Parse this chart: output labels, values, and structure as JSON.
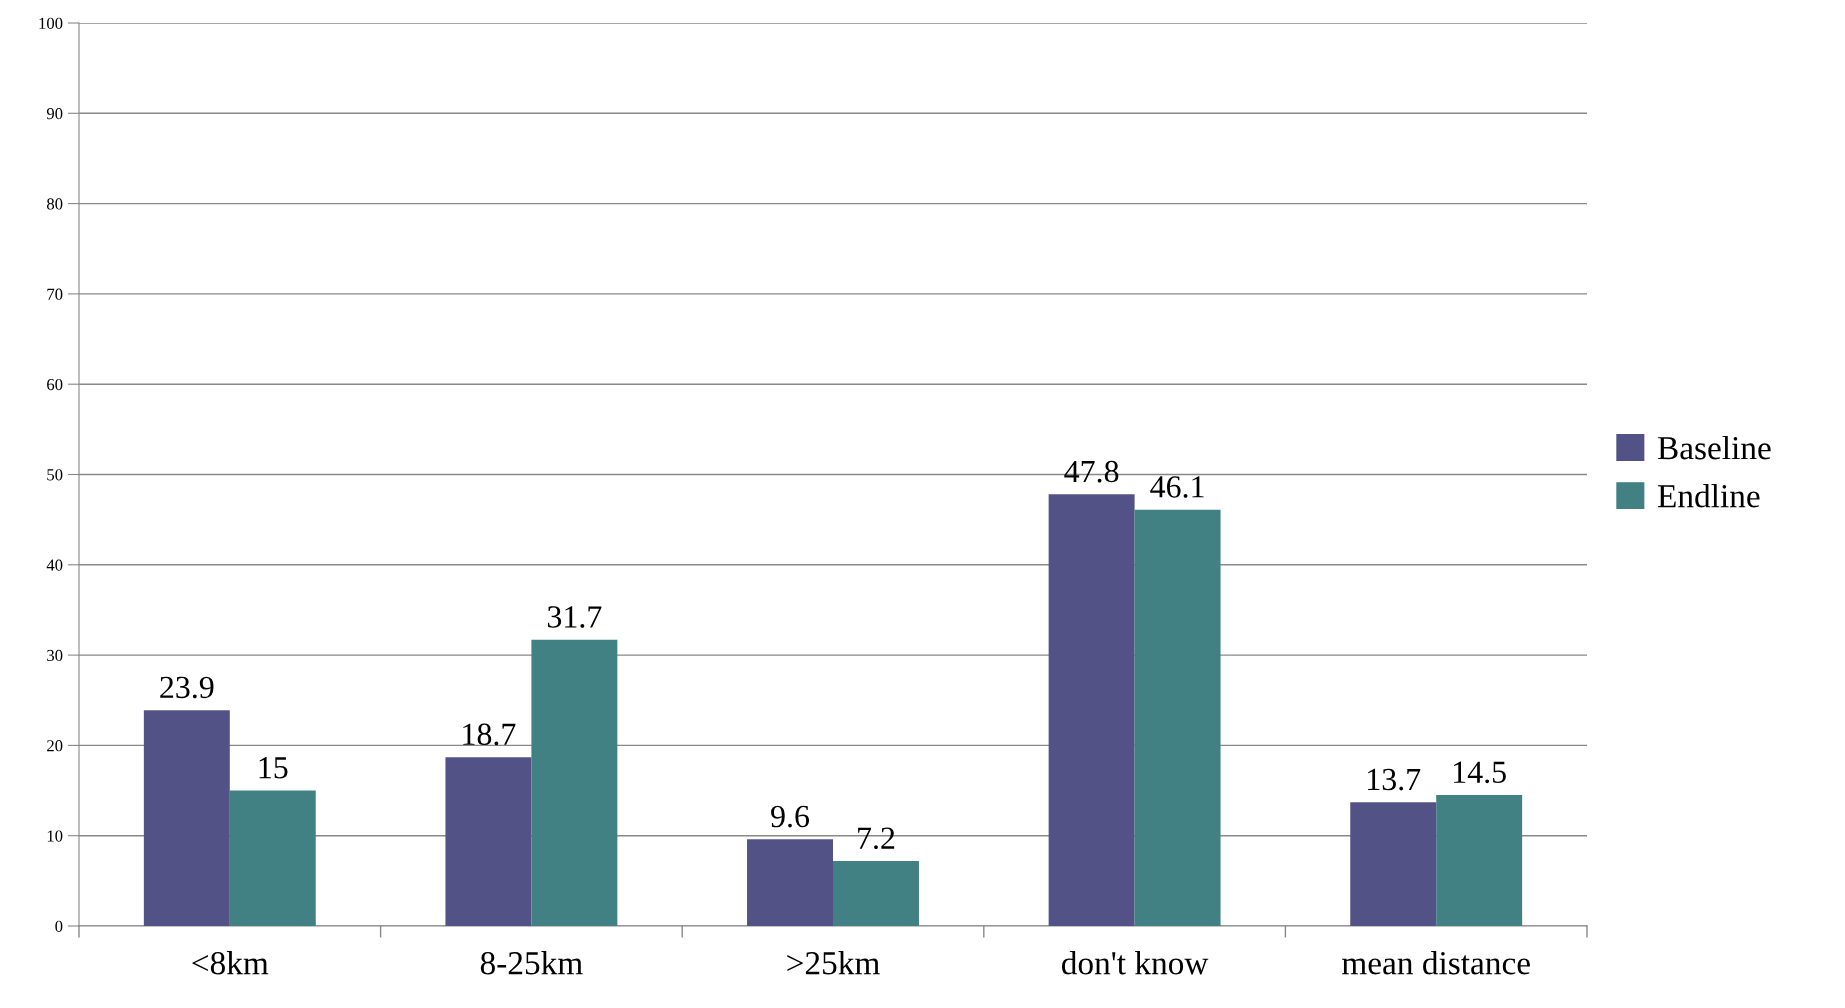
{
  "chart_data": {
    "type": "bar",
    "categories": [
      "<8km",
      "8-25km",
      ">25km",
      "don't know",
      "mean distance"
    ],
    "series": [
      {
        "name": "Baseline",
        "color": "#535287",
        "values": [
          23.9,
          18.7,
          9.6,
          47.8,
          13.7
        ]
      },
      {
        "name": "Endline",
        "color": "#428183",
        "values": [
          15,
          31.7,
          7.2,
          46.1,
          14.5
        ]
      }
    ],
    "ylim": [
      0,
      100
    ],
    "yticks": [
      0,
      10,
      20,
      30,
      40,
      50,
      60,
      70,
      80,
      90,
      100
    ],
    "grid": "y",
    "legend": "right",
    "data_labels": true
  }
}
